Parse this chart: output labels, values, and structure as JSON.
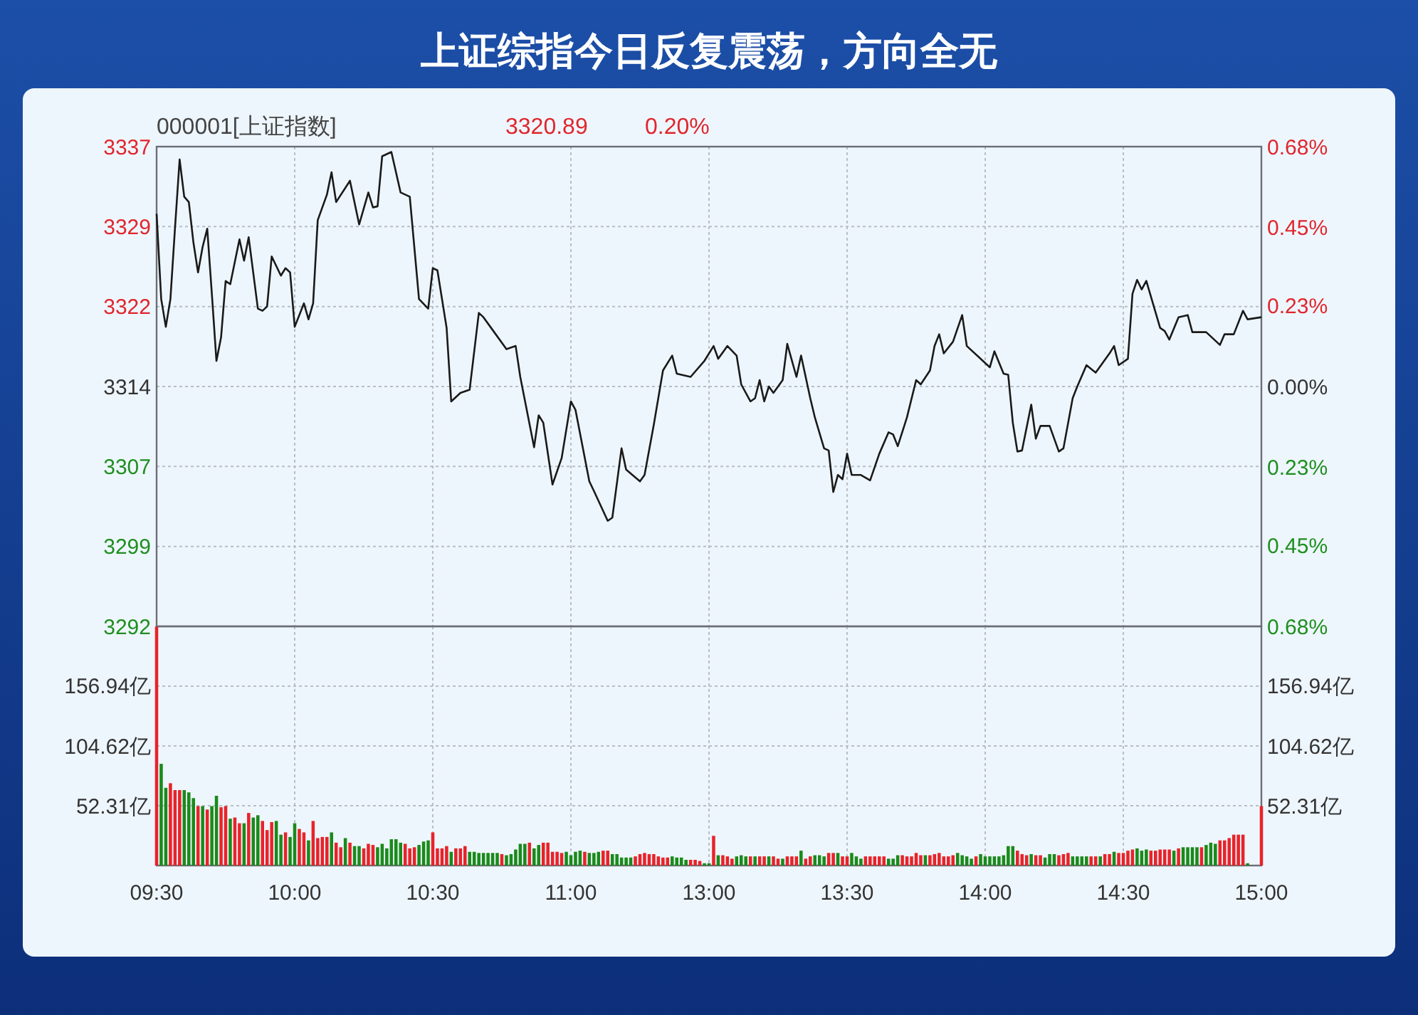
{
  "chart_data": [
    {
      "type": "line",
      "title": "上证综指今日反复震荡，方向全无",
      "annotations": [
        "000001[上证指数]",
        "3320.89",
        "0.20%"
      ],
      "grid": true,
      "tick_labels": "y",
      "categories": [
        null,
        null,
        null,
        null,
        null,
        null,
        null,
        null,
        null,
        null,
        null,
        null,
        null,
        null,
        null,
        null,
        null,
        null,
        null,
        null,
        null,
        null,
        null,
        null,
        null,
        null,
        null,
        null,
        null,
        null,
        null,
        null,
        null,
        null,
        null,
        null,
        null,
        null,
        null,
        null,
        null,
        null,
        null,
        null,
        null,
        null,
        null,
        null,
        null,
        null,
        null,
        null,
        null,
        null,
        null,
        null,
        null,
        null,
        null,
        null,
        null,
        null,
        null,
        null,
        null,
        null,
        null,
        null,
        null,
        null,
        null,
        null,
        null,
        null,
        null,
        null,
        null,
        null,
        null,
        null,
        null,
        null,
        null,
        null,
        null,
        null,
        null,
        null,
        null,
        null,
        null,
        null,
        null,
        null,
        null,
        null,
        null,
        null,
        null,
        null,
        null,
        null,
        null,
        null,
        null,
        null,
        null,
        null,
        null,
        null,
        null,
        null,
        null,
        null,
        null,
        null,
        null,
        null,
        null,
        null,
        null,
        null,
        null,
        null,
        null,
        null,
        null,
        null,
        null,
        null,
        null,
        null,
        null,
        null,
        null,
        null,
        null,
        null,
        null,
        null,
        null,
        null,
        null,
        null,
        null,
        null,
        null,
        null,
        null,
        null,
        null,
        null,
        null,
        null,
        null,
        null,
        null,
        null,
        null,
        null,
        null,
        null,
        null,
        null,
        null,
        null,
        null,
        null,
        null,
        null,
        null,
        null,
        null,
        null,
        null,
        null,
        null,
        null,
        null,
        null,
        null,
        null,
        null,
        null,
        null,
        null,
        null,
        null,
        null,
        null,
        null,
        null,
        null,
        null,
        null,
        null,
        null,
        null,
        null,
        null,
        null,
        null,
        null,
        null,
        null,
        null,
        null,
        null,
        null,
        null,
        null,
        null,
        null,
        null,
        null,
        null,
        null,
        null,
        null,
        null,
        null,
        null,
        null,
        null,
        null,
        null,
        null,
        null,
        null,
        null,
        null,
        null,
        null,
        null,
        null,
        null,
        null,
        null,
        null,
        null,
        null
      ],
      "ylim": [
        3292,
        3337
      ],
      "yticks": [
        3292,
        {
          "value": 3299.5,
          "label": "3299"
        },
        3307,
        {
          "value": 3314.5,
          "label": "3314"
        },
        3322,
        {
          "value": 3329.5,
          "label": "3329"
        },
        3337
      ],
      "y2lim": [
        -0.68,
        0.68
      ],
      "y2ticks": [
        {
          "value": -0.68,
          "label": "0.68%"
        },
        {
          "value": -0.45,
          "label": "0.45%"
        },
        {
          "value": -0.23,
          "label": "0.23%"
        },
        {
          "value": 0,
          "label": "0.00%"
        },
        {
          "value": 0.23,
          "label": "0.23%"
        },
        {
          "value": 0.45,
          "label": "0.45%"
        },
        {
          "value": 0.68,
          "label": "0.68%"
        }
      ],
      "series": [
        {
          "color": "#1a1a1a",
          "values": [
            3330.7,
            3322.7,
            3320.1,
            3322.7,
            3329.4,
            3335.8,
            3332.3,
            3331.8,
            3328.0,
            3325.2,
            3327.6,
            3329.3,
            3323.2,
            3316.9,
            3319.1,
            3324.4,
            3324.1,
            null,
            3328.3,
            3326.3,
            3328.5,
            null,
            3321.8,
            3321.6,
            3322.0,
            3326.7,
            null,
            3324.9,
            3325.6,
            3325.2,
            3320.1,
            null,
            3322.3,
            3320.8,
            3322.3,
            3330.1,
            null,
            3332.5,
            3334.6,
            3331.8,
            null,
            null,
            3333.8,
            null,
            3329.7,
            null,
            3332.7,
            3331.3,
            3331.4,
            3336.1,
            null,
            3336.5,
            null,
            3332.7,
            null,
            3332.3,
            null,
            3322.7,
            null,
            3321.8,
            3325.6,
            3325.4,
            null,
            3320.0,
            3313.1,
            null,
            3313.9,
            null,
            3314.2,
            null,
            3321.4,
            3321.0,
            null,
            3319.8,
            null,
            null,
            3318.0,
            null,
            3318.3,
            3315.4,
            null,
            null,
            3308.8,
            3311.8,
            3311.1,
            null,
            3305.3,
            null,
            3307.8,
            null,
            3313.1,
            3312.3,
            null,
            null,
            3305.6,
            3304.7,
            null,
            null,
            3301.9,
            3302.2,
            null,
            3308.7,
            3306.7,
            null,
            null,
            3305.6,
            3306.2,
            null,
            3310.9,
            null,
            3316.0,
            null,
            3317.4,
            3315.7,
            null,
            null,
            3315.4,
            null,
            null,
            3316.9,
            null,
            3318.3,
            3317.1,
            null,
            3318.3,
            null,
            3317.4,
            3314.7,
            null,
            3313.1,
            3313.4,
            3315.1,
            3313.1,
            3314.5,
            3313.9,
            null,
            3315.1,
            3318.5,
            null,
            3315.4,
            3317.4,
            null,
            3313.4,
            3311.6,
            null,
            3308.7,
            3308.5,
            3304.6,
            3306.2,
            3305.8,
            3308.2,
            3306.2,
            null,
            3306.2,
            null,
            3305.7,
            null,
            3308.2,
            null,
            3310.2,
            3310.0,
            3308.9,
            null,
            3311.6,
            null,
            3315.1,
            3314.7,
            null,
            3316.0,
            3318.3,
            3319.4,
            3317.6,
            null,
            3318.7,
            null,
            3321.2,
            3318.3,
            null,
            null,
            3317.1,
            null,
            3316.3,
            3317.8,
            null,
            3315.7,
            3315.6,
            3311.1,
            3308.4,
            3308.5,
            null,
            3312.8,
            3309.6,
            3310.8,
            null,
            3310.8,
            null,
            3308.4,
            3308.7,
            null,
            3313.4,
            3314.5,
            null,
            3316.5,
            null,
            3315.8,
            null,
            null,
            3317.6,
            3318.3,
            3316.5,
            null,
            3317.1,
            3323.2,
            3324.5,
            3323.6,
            3324.4,
            null,
            null,
            3320.0,
            3319.7,
            3318.9,
            null,
            3321.0,
            null,
            3321.2,
            3319.6,
            null,
            null,
            3319.6,
            null,
            null,
            3318.4,
            3319.4,
            null,
            3319.4,
            null,
            3321.6,
            3320.8,
            null,
            null,
            3321.0
          ]
        }
      ]
    },
    {
      "type": "bar",
      "grid": true,
      "categories": [
        "09:30",
        null,
        null,
        null,
        null,
        null,
        null,
        null,
        null,
        null,
        null,
        null,
        null,
        null,
        null,
        null,
        null,
        null,
        null,
        null,
        null,
        null,
        null,
        null,
        null,
        null,
        null,
        null,
        null,
        null,
        "10:00",
        null,
        null,
        null,
        null,
        null,
        null,
        null,
        null,
        null,
        null,
        null,
        null,
        null,
        null,
        null,
        null,
        null,
        null,
        null,
        null,
        null,
        null,
        null,
        null,
        null,
        null,
        null,
        null,
        null,
        "10:30",
        null,
        null,
        null,
        null,
        null,
        null,
        null,
        null,
        null,
        null,
        null,
        null,
        null,
        null,
        null,
        null,
        null,
        null,
        null,
        null,
        null,
        null,
        null,
        null,
        null,
        null,
        null,
        null,
        null,
        "11:00",
        null,
        null,
        null,
        null,
        null,
        null,
        null,
        null,
        null,
        null,
        null,
        null,
        null,
        null,
        null,
        null,
        null,
        null,
        null,
        null,
        null,
        null,
        null,
        null,
        null,
        null,
        null,
        null,
        null,
        "13:00",
        null,
        null,
        null,
        null,
        null,
        null,
        null,
        null,
        null,
        null,
        null,
        null,
        null,
        null,
        null,
        null,
        null,
        null,
        null,
        null,
        null,
        null,
        null,
        null,
        null,
        null,
        null,
        null,
        null,
        "13:30",
        null,
        null,
        null,
        null,
        null,
        null,
        null,
        null,
        null,
        null,
        null,
        null,
        null,
        null,
        null,
        null,
        null,
        null,
        null,
        null,
        null,
        null,
        null,
        null,
        null,
        null,
        null,
        null,
        null,
        "14:00",
        null,
        null,
        null,
        null,
        null,
        null,
        null,
        null,
        null,
        null,
        null,
        null,
        null,
        null,
        null,
        null,
        null,
        null,
        null,
        null,
        null,
        null,
        null,
        null,
        null,
        null,
        null,
        null,
        null,
        "14:30",
        null,
        null,
        null,
        null,
        null,
        null,
        null,
        null,
        null,
        null,
        null,
        null,
        null,
        null,
        null,
        null,
        null,
        null,
        null,
        null,
        null,
        null,
        null,
        null,
        null,
        null,
        null,
        null,
        null,
        "15:00"
      ],
      "ylim": [
        0,
        209.25
      ],
      "yticks": [
        {
          "value": 52.31,
          "label": "52.31亿"
        },
        {
          "value": 104.62,
          "label": "104.62亿"
        },
        {
          "value": 156.94,
          "label": "156.94亿"
        }
      ],
      "y2lim": [
        0,
        209.25
      ],
      "y2ticks": [
        {
          "value": 52.31,
          "label": "52.31亿"
        },
        {
          "value": 104.62,
          "label": "104.62亿"
        },
        {
          "value": 156.94,
          "label": "156.94亿"
        }
      ],
      "values": [
        209,
        89,
        68,
        72,
        66,
        66,
        66,
        64,
        59,
        52,
        52,
        49,
        52,
        61,
        51,
        52,
        41,
        42,
        37,
        37,
        46,
        42,
        44,
        39,
        31,
        38,
        39,
        27,
        29,
        25,
        37,
        32,
        29,
        22,
        39,
        24,
        25,
        25,
        29,
        20,
        16,
        24,
        20,
        17,
        17,
        15,
        19,
        18,
        16,
        19,
        15,
        23,
        23,
        20,
        19,
        15,
        16,
        18,
        21,
        22,
        29,
        15,
        15,
        17,
        12,
        15,
        15,
        17,
        12,
        12,
        11,
        11,
        11,
        11,
        11,
        10,
        9,
        10,
        14,
        19,
        19,
        20,
        15,
        18,
        20,
        20,
        12,
        12,
        11,
        12,
        9,
        12,
        13,
        12,
        11,
        11,
        12,
        13,
        13,
        10,
        10,
        7,
        7,
        7,
        8,
        10,
        11,
        10,
        10,
        8,
        7,
        7,
        8,
        7,
        7,
        5,
        5,
        5,
        4,
        2,
        2,
        26,
        9,
        9,
        8,
        6,
        8,
        9,
        8,
        8,
        8,
        8,
        8,
        8,
        8,
        6,
        6,
        8,
        8,
        8,
        13,
        6,
        8,
        9,
        9,
        8,
        11,
        11,
        11,
        8,
        8,
        11,
        8,
        6,
        8,
        8,
        8,
        8,
        8,
        6,
        6,
        9,
        9,
        8,
        8,
        11,
        9,
        9,
        9,
        10,
        11,
        8,
        8,
        9,
        11,
        9,
        8,
        6,
        8,
        10,
        8,
        8,
        8,
        8,
        9,
        17,
        17,
        13,
        10,
        9,
        10,
        9,
        9,
        7,
        10,
        10,
        9,
        10,
        11,
        8,
        8,
        8,
        8,
        8,
        8,
        8,
        10,
        10,
        12,
        11,
        11,
        13,
        14,
        15,
        13,
        14,
        13,
        13,
        14,
        14,
        14,
        13,
        15,
        16,
        16,
        16,
        16,
        16,
        18,
        20,
        19,
        22,
        22,
        24,
        27,
        27,
        27,
        2,
        null,
        null,
        52
      ],
      "colors": [
        "#e8232a",
        "#1a8a1a",
        "#1a8a1a",
        "#e8232a",
        "#e8232a",
        "#e8232a",
        "#1a8a1a",
        "#1a8a1a",
        "#1a8a1a",
        "#e8232a",
        "#1a8a1a",
        "#e8232a",
        "#1a8a1a",
        "#1a8a1a",
        "#e8232a",
        "#e8232a",
        "#1a8a1a",
        "#e8232a",
        "#e8232a",
        "#1a8a1a",
        "#e8232a",
        "#1a8a1a",
        "#1a8a1a",
        "#e8232a",
        "#e8232a",
        "#e8232a",
        "#1a8a1a",
        "#1a8a1a",
        "#e8232a",
        "#1a8a1a",
        "#1a8a1a",
        "#e8232a",
        "#e8232a",
        "#1a8a1a",
        "#e8232a",
        "#e8232a",
        "#e8232a",
        "#e8232a",
        "#1a8a1a",
        "#e8232a",
        "#e8232a",
        "#1a8a1a",
        "#e8232a",
        "#1a8a1a",
        "#1a8a1a",
        "#e8232a",
        "#e8232a",
        "#e8232a",
        "#1a8a1a",
        "#1a8a1a",
        "#1a8a1a",
        "#1a8a1a",
        "#1a8a1a",
        "#1a8a1a",
        "#e8232a",
        "#e8232a",
        "#e8232a",
        "#1a8a1a",
        "#1a8a1a",
        "#1a8a1a",
        "#e8232a",
        "#e8232a",
        "#e8232a",
        "#e8232a",
        "#1a8a1a",
        "#e8232a",
        "#e8232a",
        "#e8232a",
        "#1a8a1a",
        "#1a8a1a",
        "#1a8a1a",
        "#1a8a1a",
        "#1a8a1a",
        "#1a8a1a",
        "#1a8a1a",
        "#e8232a",
        "#1a8a1a",
        "#1a8a1a",
        "#1a8a1a",
        "#1a8a1a",
        "#1a8a1a",
        "#e8232a",
        "#1a8a1a",
        "#1a8a1a",
        "#e8232a",
        "#e8232a",
        "#e8232a",
        "#e8232a",
        "#e8232a",
        "#1a8a1a",
        "#1a8a1a",
        "#1a8a1a",
        "#1a8a1a",
        "#e8232a",
        "#1a8a1a",
        "#1a8a1a",
        "#1a8a1a",
        "#e8232a",
        "#e8232a",
        "#1a8a1a",
        "#1a8a1a",
        "#1a8a1a",
        "#1a8a1a",
        "#1a8a1a",
        "#e8232a",
        "#e8232a",
        "#e8232a",
        "#e8232a",
        "#e8232a",
        "#e8232a",
        "#e8232a",
        "#e8232a",
        "#1a8a1a",
        "#1a8a1a",
        "#1a8a1a",
        "#1a8a1a",
        "#e8232a",
        "#e8232a",
        "#e8232a",
        "#1a8a1a",
        "#1a8a1a",
        "#e8232a",
        "#1a8a1a",
        "#e8232a",
        "#e8232a",
        "#e8232a",
        "#1a8a1a",
        "#1a8a1a",
        "#1a8a1a",
        "#e8232a",
        "#1a8a1a",
        "#e8232a",
        "#e8232a",
        "#1a8a1a",
        "#e8232a",
        "#e8232a",
        "#1a8a1a",
        "#e8232a",
        "#e8232a",
        "#e8232a",
        "#1a8a1a",
        "#e8232a",
        "#e8232a",
        "#1a8a1a",
        "#1a8a1a",
        "#1a8a1a",
        "#e8232a",
        "#e8232a",
        "#1a8a1a",
        "#e8232a",
        "#e8232a",
        "#1a8a1a",
        "#1a8a1a",
        "#1a8a1a",
        "#e8232a",
        "#e8232a",
        "#e8232a",
        "#e8232a",
        "#e8232a",
        "#1a8a1a",
        "#1a8a1a",
        "#1a8a1a",
        "#e8232a",
        "#e8232a",
        "#e8232a",
        "#e8232a",
        "#e8232a",
        "#1a8a1a",
        "#e8232a",
        "#e8232a",
        "#e8232a",
        "#e8232a",
        "#e8232a",
        "#e8232a",
        "#1a8a1a",
        "#1a8a1a",
        "#1a8a1a",
        "#1a8a1a",
        "#e8232a",
        "#1a8a1a",
        "#1a8a1a",
        "#1a8a1a",
        "#1a8a1a",
        "#1a8a1a",
        "#1a8a1a",
        "#1a8a1a",
        "#1a8a1a",
        "#e8232a",
        "#e8232a",
        "#e8232a",
        "#1a8a1a",
        "#e8232a",
        "#e8232a",
        "#1a8a1a",
        "#1a8a1a",
        "#1a8a1a",
        "#e8232a",
        "#e8232a",
        "#e8232a",
        "#1a8a1a",
        "#1a8a1a",
        "#1a8a1a",
        "#1a8a1a",
        "#e8232a",
        "#e8232a",
        "#1a8a1a",
        "#e8232a",
        "#e8232a",
        "#1a8a1a",
        "#e8232a",
        "#e8232a",
        "#e8232a",
        "#e8232a",
        "#1a8a1a",
        "#1a8a1a",
        "#1a8a1a",
        "#e8232a",
        "#e8232a",
        "#e8232a",
        "#e8232a",
        "#e8232a",
        "#1a8a1a",
        "#e8232a",
        "#1a8a1a",
        "#1a8a1a",
        "#1a8a1a",
        "#1a8a1a",
        "#e8232a",
        "#1a8a1a",
        "#1a8a1a",
        "#1a8a1a",
        "#e8232a",
        "#e8232a",
        "#e8232a",
        "#e8232a",
        "#e8232a",
        "#e8232a",
        "#1a8a1a",
        null,
        null,
        "#e8232a"
      ]
    }
  ]
}
